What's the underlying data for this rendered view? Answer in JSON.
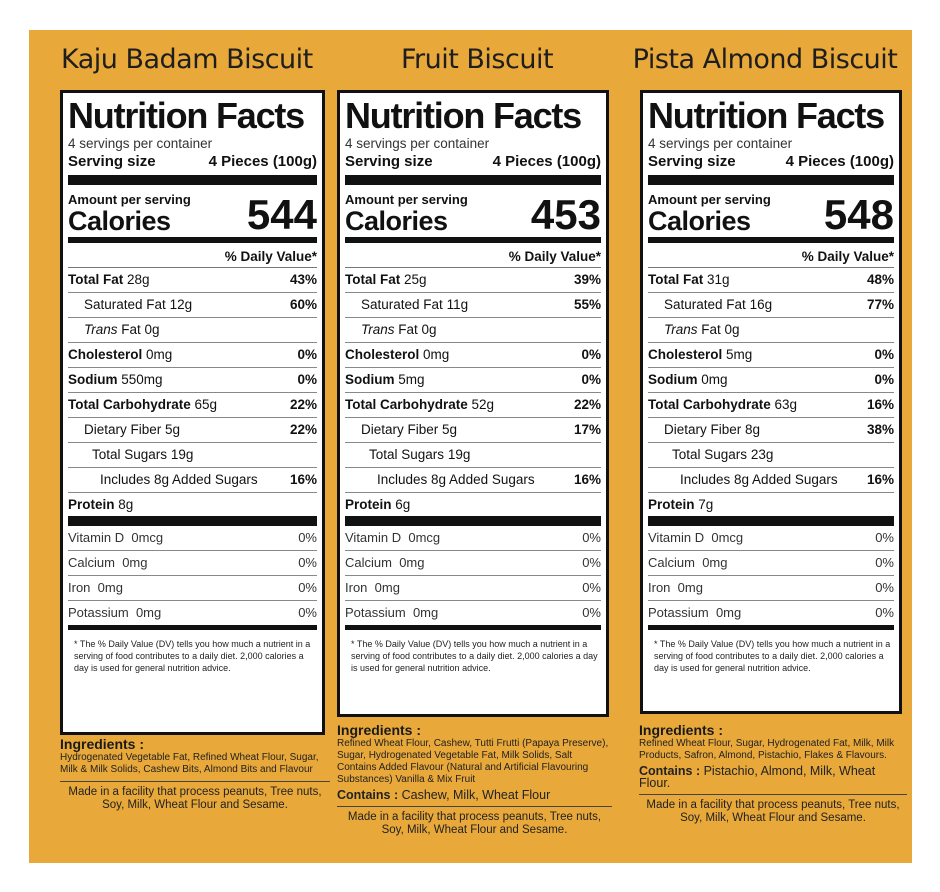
{
  "panels": [
    {
      "product": "Kaju Badam Biscuit",
      "nf_title": "Nutrition Facts",
      "servings": "4 servings per container",
      "serving_size_label": "Serving size",
      "serving_size": "4 Pieces (100g)",
      "amount_label": "Amount per serving",
      "calories_label": "Calories",
      "calories": "544",
      "dv_header": "% Daily Value*",
      "rows": [
        {
          "name": "Total Fat",
          "amount": "28g",
          "pct": "43%"
        },
        {
          "name": "Saturated Fat",
          "amount": "12g",
          "pct": "60%"
        },
        {
          "name": "Trans",
          "name2": "Fat 0g",
          "amount": "",
          "pct": ""
        },
        {
          "name": "Cholesterol",
          "amount": "0mg",
          "pct": "0%"
        },
        {
          "name": "Sodium",
          "amount": "550mg",
          "pct": "0%"
        },
        {
          "name": "Total Carbohydrate",
          "amount": "65g",
          "pct": "22%"
        },
        {
          "name": "Dietary Fiber",
          "amount": "5g",
          "pct": "22%"
        },
        {
          "name": "Total Sugars",
          "amount": "19g",
          "pct": ""
        },
        {
          "name": "Includes 8g Added Sugars",
          "amount": "",
          "pct": "16%"
        },
        {
          "name": "Protein",
          "amount": "8g",
          "pct": ""
        }
      ],
      "vitamins": [
        {
          "name": "Vitamin D",
          "amount": "0mcg",
          "pct": "0%"
        },
        {
          "name": "Calcium",
          "amount": "0mg",
          "pct": "0%"
        },
        {
          "name": "Iron",
          "amount": "0mg",
          "pct": "0%"
        },
        {
          "name": "Potassium",
          "amount": "0mg",
          "pct": "0%"
        }
      ],
      "footnote": "* The % Daily Value (DV) tells you how much a nutrient in a serving of food contributes to a daily diet. 2,000 calories a day is used for general nutrition advice.",
      "ingredients_title": "Ingredients :",
      "ingredients": "Hydrogenated Vegetable Fat, Refined Wheat Flour, Sugar, Milk & Milk Solids, Cashew Bits, Almond Bits and Flavour",
      "contains_label": "",
      "contains": "",
      "facility": "Made in a facility that process peanuts, Tree nuts, Soy, Milk, Wheat Flour and Sesame."
    },
    {
      "product": "Fruit Biscuit",
      "nf_title": "Nutrition Facts",
      "servings": "4 servings per container",
      "serving_size_label": "Serving size",
      "serving_size": "4 Pieces (100g)",
      "amount_label": "Amount per serving",
      "calories_label": "Calories",
      "calories": "453",
      "dv_header": "% Daily Value*",
      "rows": [
        {
          "name": "Total Fat",
          "amount": "25g",
          "pct": "39%"
        },
        {
          "name": "Saturated Fat",
          "amount": "11g",
          "pct": "55%"
        },
        {
          "name": "Trans",
          "name2": "Fat 0g",
          "amount": "",
          "pct": ""
        },
        {
          "name": "Cholesterol",
          "amount": "0mg",
          "pct": "0%"
        },
        {
          "name": "Sodium",
          "amount": "5mg",
          "pct": "0%"
        },
        {
          "name": "Total Carbohydrate",
          "amount": "52g",
          "pct": "22%"
        },
        {
          "name": "Dietary Fiber",
          "amount": "5g",
          "pct": "17%"
        },
        {
          "name": "Total Sugars",
          "amount": "19g",
          "pct": ""
        },
        {
          "name": "Includes 8g Added Sugars",
          "amount": "",
          "pct": "16%"
        },
        {
          "name": "Protein",
          "amount": "6g",
          "pct": ""
        }
      ],
      "vitamins": [
        {
          "name": "Vitamin D",
          "amount": "0mcg",
          "pct": "0%"
        },
        {
          "name": "Calcium",
          "amount": "0mg",
          "pct": "0%"
        },
        {
          "name": "Iron",
          "amount": "0mg",
          "pct": "0%"
        },
        {
          "name": "Potassium",
          "amount": "0mg",
          "pct": "0%"
        }
      ],
      "footnote": "* The % Daily Value (DV) tells you how much a nutrient in a serving of food contributes to a daily diet. 2,000 calories a day is used for general nutrition advice.",
      "ingredients_title": "Ingredients :",
      "ingredients": "Refined Wheat Flour, Cashew, Tutti Frutti (Papaya Preserve), Sugar, Hydrogenated Vegetable Fat, Milk Solids, Salt Contains Added Flavour (Natural and Artificial Flavouring Substances) Vanilla & Mix Fruit",
      "contains_label": "Contains :",
      "contains": "Cashew, Milk, Wheat Flour",
      "facility": "Made in a facility that process peanuts, Tree nuts, Soy, Milk, Wheat Flour and Sesame."
    },
    {
      "product": "Pista Almond Biscuit",
      "nf_title": "Nutrition Facts",
      "servings": "4 servings per container",
      "serving_size_label": "Serving size",
      "serving_size": "4 Pieces (100g)",
      "amount_label": "Amount per serving",
      "calories_label": "Calories",
      "calories": "548",
      "dv_header": "% Daily Value*",
      "rows": [
        {
          "name": "Total Fat",
          "amount": "31g",
          "pct": "48%"
        },
        {
          "name": "Saturated Fat",
          "amount": "16g",
          "pct": "77%"
        },
        {
          "name": "Trans",
          "name2": "Fat 0g",
          "amount": "",
          "pct": ""
        },
        {
          "name": "Cholesterol",
          "amount": "5mg",
          "pct": "0%"
        },
        {
          "name": "Sodium",
          "amount": "0mg",
          "pct": "0%"
        },
        {
          "name": "Total Carbohydrate",
          "amount": "63g",
          "pct": "16%"
        },
        {
          "name": "Dietary Fiber",
          "amount": "8g",
          "pct": "38%"
        },
        {
          "name": "Total Sugars",
          "amount": "23g",
          "pct": ""
        },
        {
          "name": "Includes 8g Added Sugars",
          "amount": "",
          "pct": "16%"
        },
        {
          "name": "Protein",
          "amount": "7g",
          "pct": ""
        }
      ],
      "vitamins": [
        {
          "name": "Vitamin D",
          "amount": "0mcg",
          "pct": "0%"
        },
        {
          "name": "Calcium",
          "amount": "0mg",
          "pct": "0%"
        },
        {
          "name": "Iron",
          "amount": "0mg",
          "pct": "0%"
        },
        {
          "name": "Potassium",
          "amount": "0mg",
          "pct": "0%"
        }
      ],
      "footnote": "* The % Daily Value (DV) tells you how much a nutrient in a serving of food contributes to a daily diet. 2,000 calories a day is used for general nutrition advice.",
      "ingredients_title": "Ingredients :",
      "ingredients": "Refined Wheat Flour, Sugar, Hydrogenated Fat, Milk, Milk Products, Safron, Almond, Pistachio, Flakes & Flavours.",
      "contains_label": "Contains :",
      "contains": "Pistachio, Almond, Milk, Wheat Flour.",
      "facility": "Made in a facility that process peanuts, Tree nuts, Soy, Milk, Wheat Flour and Sesame."
    }
  ]
}
